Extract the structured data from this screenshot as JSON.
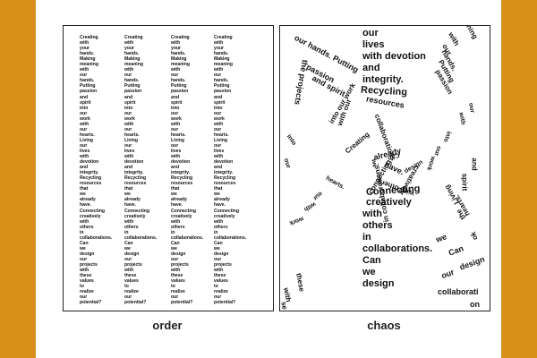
{
  "order_panel": {
    "caption": "order",
    "column_text": "Creating\nwith\nyour\nhands.\nMaking\nmeaning\nwith\nour\nhands.\nPutting\npassion\nand\nspirit\ninto\nour\nwork\nwith\nour\nhearts.\nLiving\nour\nlives\nwith\ndevotion\nand\nintegrity.\nRecycling\nresources\nthat\nwe\nalready\nhave.\nConnecting\ncreatively\nwith\nothers\nin\ncollaborations.\nCan\nwe\ndesign\nour\nprojects\nwith\nthese\nvalues\nto\nrealize\nour\npotential?"
  },
  "chaos_panel": {
    "caption": "chaos",
    "main_lines": [
      "our",
      "lives",
      "with devotion",
      "and",
      "integrity.",
      "Recycling",
      "resources"
    ],
    "lower_lines": [
      "Connecting",
      "creatively",
      "with",
      "others",
      "in",
      "collaborations.",
      "Can",
      "we",
      "design"
    ],
    "scattered": [
      "our hands. Putting",
      "passion",
      "and spirit",
      "into our work",
      "with our",
      "the projects",
      "Creating",
      "collaborations",
      "already",
      "have.",
      "connecting",
      "creatively",
      "with others",
      "in collaborations.",
      "Can",
      "we",
      "design",
      "into",
      "our",
      "work",
      "with",
      "our",
      "hearts.",
      "ning",
      "with",
      "our",
      "hands.",
      "Putting",
      "passion",
      "and",
      "spirit",
      "into",
      "our",
      "work",
      "with",
      "our",
      "ok",
      "the",
      "hearts.",
      "Living",
      "collaborati",
      "on",
      "we",
      "Can",
      "design",
      "our",
      "these",
      "with",
      "se"
    ]
  },
  "colors": {
    "background": "#d9901a",
    "paper": "#ffffff",
    "ink": "#111111"
  }
}
